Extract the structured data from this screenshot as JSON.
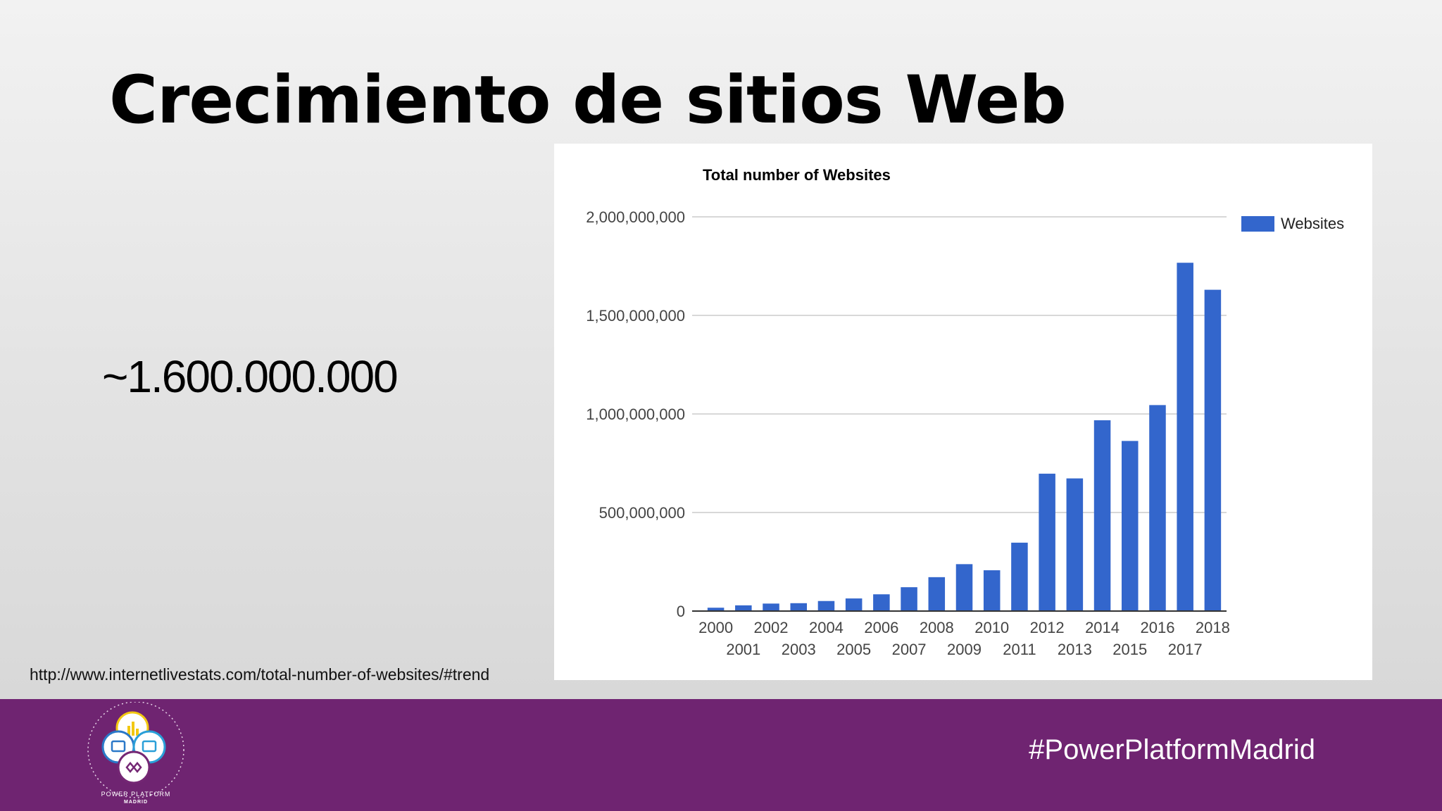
{
  "slide": {
    "title": "Crecimiento de sitios Web",
    "highlight": "~1.600.000.000",
    "source": "http://www.internetlivestats.com/total-number-of-websites/#trend"
  },
  "footer": {
    "hashtag": "#PowerPlatformMadrid",
    "logo_text_line1": "POWER PLATFORM",
    "logo_text_line2": "MADRID",
    "background": "#6f2471"
  },
  "chart_data": {
    "type": "bar",
    "title": "Total number of Websites",
    "xlabel": "",
    "ylabel": "",
    "categories": [
      "2000",
      "2001",
      "2002",
      "2003",
      "2004",
      "2005",
      "2006",
      "2007",
      "2008",
      "2009",
      "2010",
      "2011",
      "2012",
      "2013",
      "2014",
      "2015",
      "2016",
      "2017",
      "2018"
    ],
    "series": [
      {
        "name": "Websites",
        "color": "#3366cc",
        "values": [
          17000000,
          29000000,
          38000000,
          40000000,
          51000000,
          64000000,
          85000000,
          121000000,
          172000000,
          238000000,
          207000000,
          347000000,
          697000000,
          673000000,
          968000000,
          863000000,
          1045000000,
          1767000000,
          1630000000
        ]
      }
    ],
    "yticks": [
      "0",
      "500,000,000",
      "1,000,000,000",
      "1,500,000,000",
      "2,000,000,000"
    ],
    "ytick_values": [
      0,
      500000000,
      1000000000,
      1500000000,
      2000000000
    ],
    "ylim": [
      0,
      2000000000
    ],
    "grid": true,
    "legend": "top-right"
  }
}
